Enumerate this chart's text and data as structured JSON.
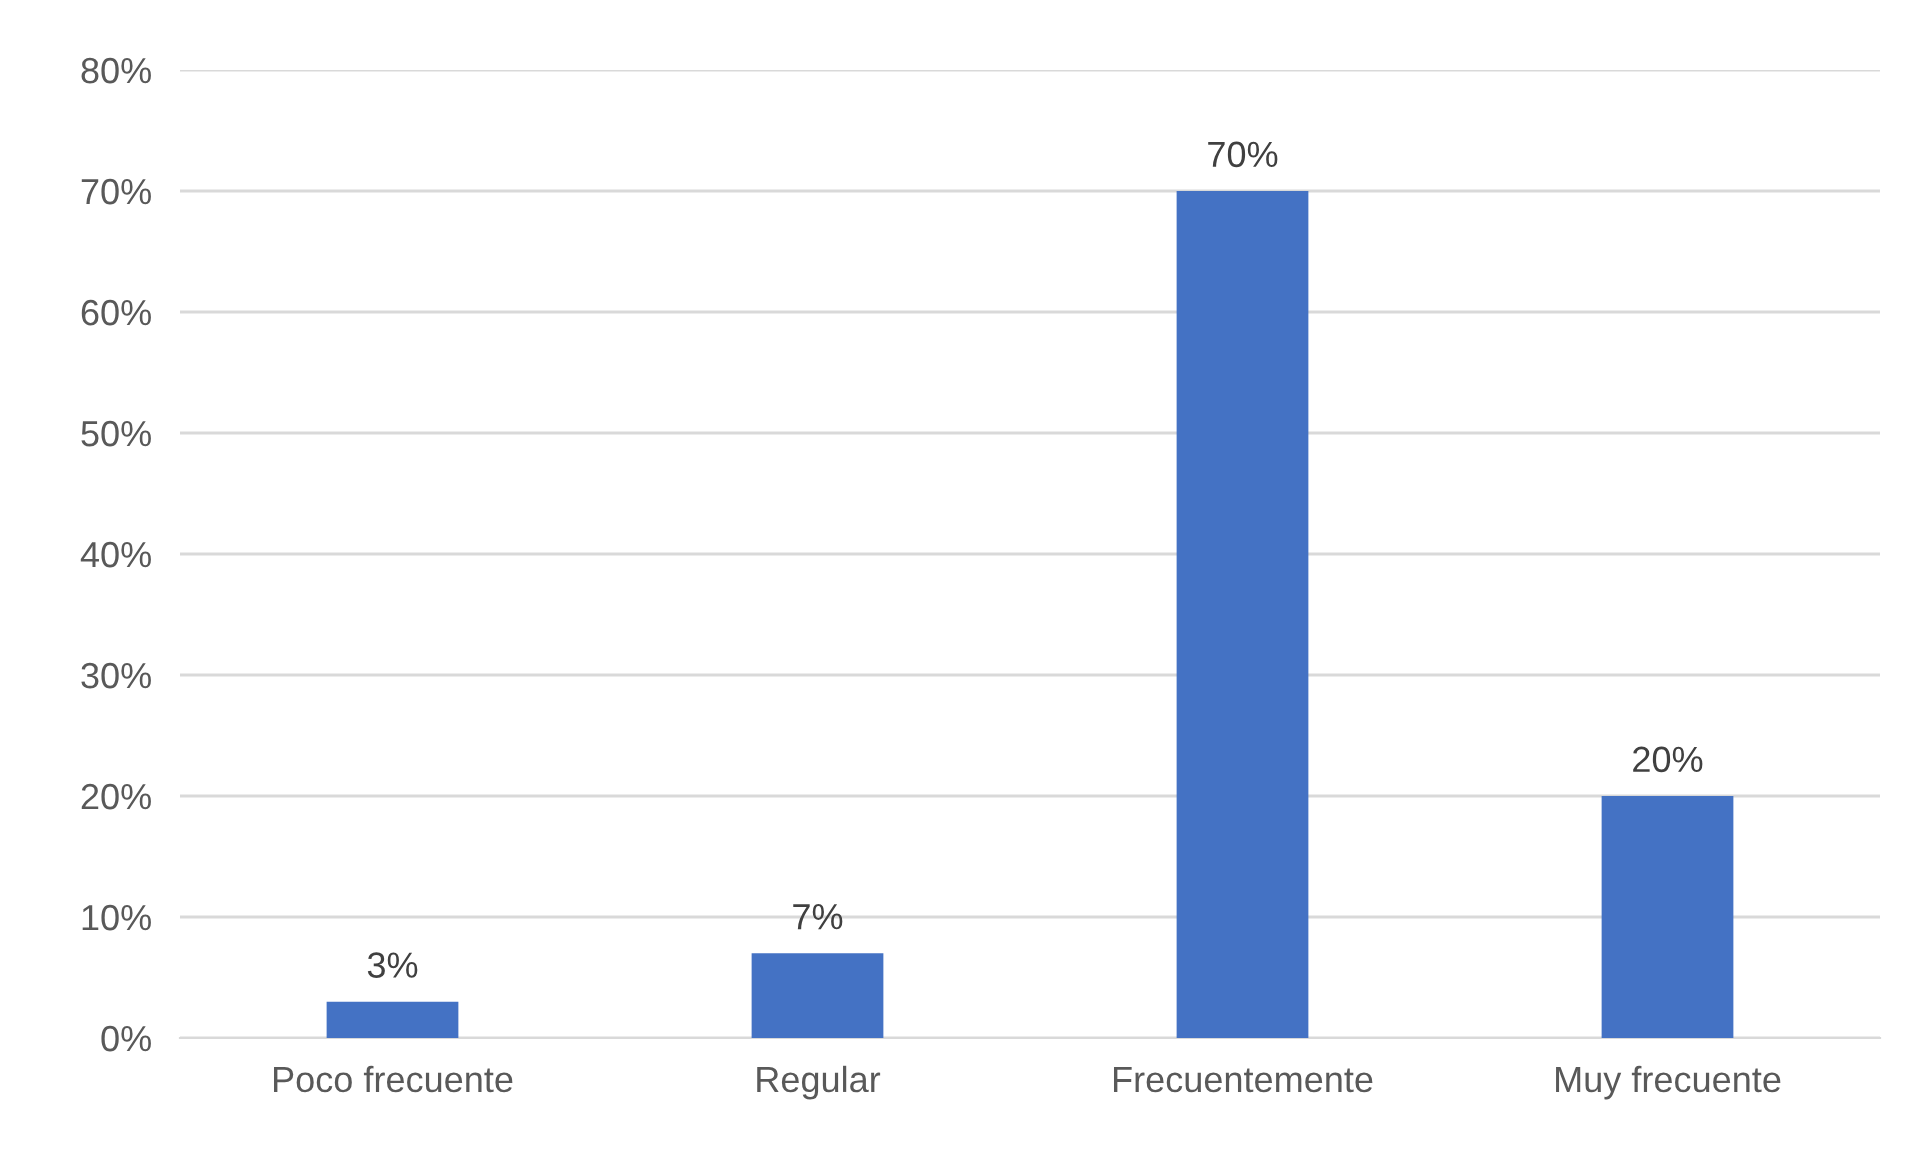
{
  "chart_data": {
    "type": "bar",
    "categories": [
      "Poco frecuente",
      "Regular",
      "Frecuentemente",
      "Muy frecuente"
    ],
    "values": [
      3,
      7,
      70,
      20
    ],
    "value_labels": [
      "3%",
      "7%",
      "70%",
      "20%"
    ],
    "color": "#4472c4",
    "ylim": [
      0,
      80
    ],
    "yticks": [
      {
        "value": 0,
        "label": "0%"
      },
      {
        "value": 10,
        "label": "10%"
      },
      {
        "value": 20,
        "label": "20%"
      },
      {
        "value": 30,
        "label": "30%"
      },
      {
        "value": 40,
        "label": "40%"
      },
      {
        "value": 50,
        "label": "50%"
      },
      {
        "value": 60,
        "label": "60%"
      },
      {
        "value": 70,
        "label": "70%"
      },
      {
        "value": 80,
        "label": "80%"
      }
    ],
    "grid": "y",
    "legend": false
  }
}
